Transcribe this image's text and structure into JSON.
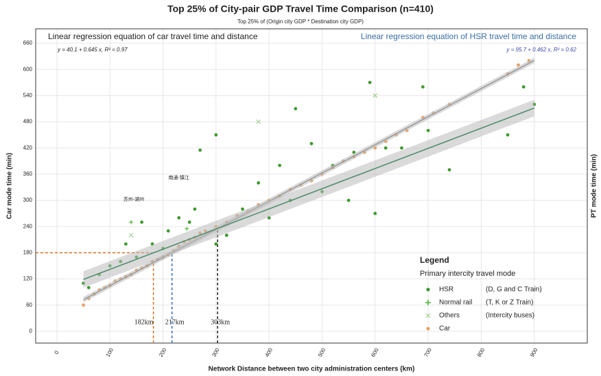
{
  "chart_data": {
    "type": "scatter",
    "title": "Top 25% of City-pair GDP Travel Time Comparison (n=410)",
    "subtitle": "Top 25% of (Origin city GDP * Destination city GDP)",
    "xlabel": "Network Distance between two city administration centers (km)",
    "ylabel": "Car mode time (min)",
    "y2label": "PT mode time (min)",
    "xlim": [
      -40,
      1000
    ],
    "ylim": [
      -27,
      693
    ],
    "xticks": [
      0,
      100,
      200,
      300,
      400,
      500,
      600,
      700,
      800,
      900
    ],
    "yticks": [
      0,
      60,
      120,
      180,
      240,
      300,
      360,
      420,
      480,
      540,
      600,
      660
    ],
    "grid": true,
    "series": [
      {
        "name": "HSR",
        "description": "(D, G and C Train)",
        "color": "#3d9a2e",
        "marker": "circle",
        "x": [
          50,
          60,
          80,
          100,
          120,
          130,
          150,
          160,
          180,
          200,
          210,
          230,
          250,
          260,
          270,
          300,
          300,
          320,
          350,
          380,
          400,
          420,
          440,
          450,
          480,
          500,
          520,
          550,
          560,
          590,
          600,
          620,
          650,
          690,
          700,
          740,
          850,
          880,
          900
        ],
        "values": [
          110,
          100,
          130,
          150,
          160,
          200,
          170,
          250,
          200,
          190,
          230,
          260,
          250,
          280,
          415,
          450,
          200,
          220,
          280,
          340,
          260,
          380,
          300,
          510,
          430,
          320,
          380,
          300,
          410,
          570,
          270,
          420,
          420,
          560,
          460,
          370,
          450,
          560,
          520
        ]
      },
      {
        "name": "Normal rail",
        "description": "(T, K or Z Train)",
        "color": "#6cbf5a",
        "marker": "plus",
        "x": [
          140,
          200,
          245
        ],
        "values": [
          250,
          170,
          235
        ]
      },
      {
        "name": "Others",
        "description": "(Intercity buses)",
        "color": "#9fd08f",
        "marker": "cross",
        "x": [
          380,
          600,
          140
        ],
        "values": [
          480,
          540,
          220
        ]
      },
      {
        "name": "Car",
        "description": "",
        "color": "#e9a062",
        "marker": "circle",
        "x": [
          50,
          60,
          70,
          80,
          90,
          100,
          110,
          120,
          130,
          140,
          150,
          160,
          170,
          180,
          190,
          200,
          210,
          220,
          230,
          240,
          250,
          260,
          270,
          280,
          300,
          320,
          340,
          360,
          380,
          400,
          420,
          440,
          460,
          480,
          500,
          520,
          540,
          560,
          580,
          600,
          620,
          640,
          660,
          690,
          710,
          740,
          850,
          870,
          890
        ],
        "values": [
          60,
          75,
          85,
          95,
          100,
          105,
          115,
          120,
          125,
          130,
          140,
          145,
          150,
          160,
          165,
          170,
          175,
          185,
          195,
          205,
          210,
          215,
          225,
          230,
          240,
          250,
          265,
          275,
          290,
          300,
          310,
          325,
          335,
          345,
          360,
          375,
          390,
          400,
          410,
          420,
          435,
          450,
          460,
          490,
          500,
          520,
          590,
          610,
          620
        ]
      }
    ],
    "regressions": [
      {
        "heading": "Linear regression equation of car travel time and distance",
        "equation": "y = 40.1 + 0.645 x, R² = 0.97",
        "intercept": 40.1,
        "slope": 0.645,
        "xrange": [
          50,
          900
        ],
        "color": "#999999",
        "heading_color": "#222222"
      },
      {
        "heading": "Linear regression equation of HSR travel time and distance",
        "equation": "y = 95.7 + 0.462 x, R² = 0.62",
        "intercept": 95.7,
        "slope": 0.462,
        "xrange": [
          50,
          900
        ],
        "color": "#4a8a6a",
        "heading_color": "#3a6ea5"
      }
    ],
    "reference_lines": [
      {
        "x": 182,
        "label": "182km",
        "color": "#e07020"
      },
      {
        "x": 217,
        "label": "217km",
        "color": "#3a6ec8"
      },
      {
        "x": 303,
        "label": "303km",
        "color": "#222222"
      }
    ],
    "hline": {
      "y": 180,
      "color": "#e07020"
    },
    "point_labels": [
      {
        "text": "南通-镇江",
        "x": 230,
        "y": 352
      },
      {
        "text": "苏州-湖州",
        "x": 145,
        "y": 302
      }
    ],
    "legend": {
      "title": "Legend",
      "subtitle": "Primary intercity travel mode",
      "position": "lower right"
    }
  }
}
